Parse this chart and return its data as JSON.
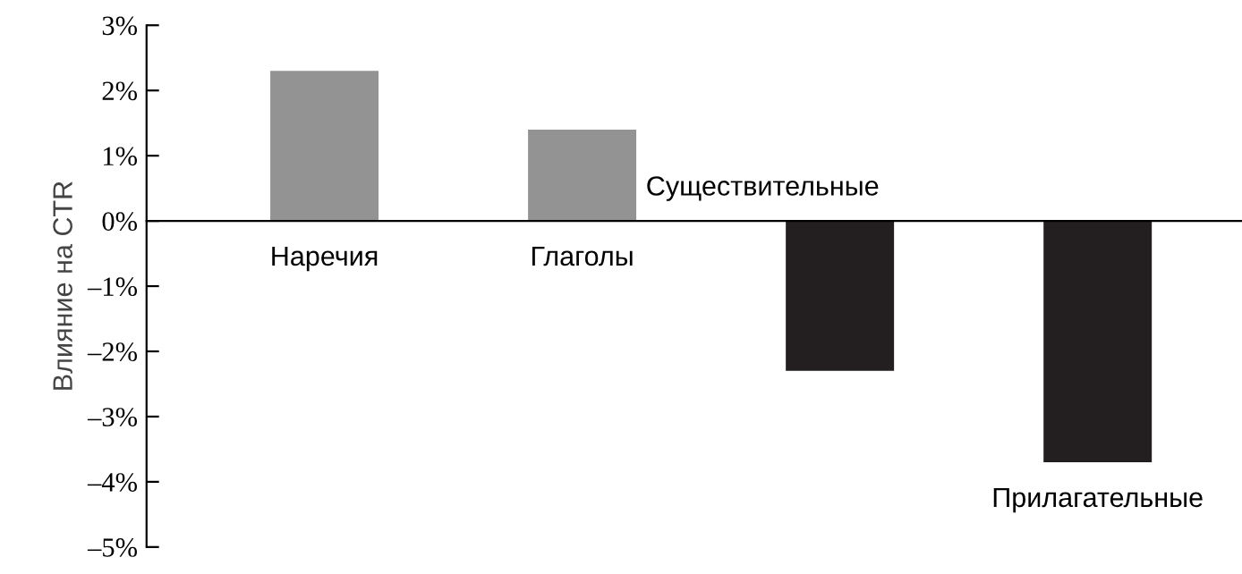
{
  "chart_data": {
    "type": "bar",
    "ylabel": "Влияние на CTR",
    "categories": [
      "Наречия",
      "Глаголы",
      "Существительные",
      "Прилагательные"
    ],
    "values": [
      2.3,
      1.4,
      -2.3,
      -3.7
    ],
    "colors": [
      "#939393",
      "#939393",
      "#231f20",
      "#231f20"
    ],
    "ylim": [
      -5,
      3
    ],
    "yticks": [
      {
        "value": -5,
        "label": "–5%"
      },
      {
        "value": -4,
        "label": "–4%"
      },
      {
        "value": -3,
        "label": "–3%"
      },
      {
        "value": -2,
        "label": "–2%"
      },
      {
        "value": -1,
        "label": "–1%"
      },
      {
        "value": 0,
        "label": "0%"
      },
      {
        "value": 1,
        "label": "1%"
      },
      {
        "value": 2,
        "label": "2%"
      },
      {
        "value": 3,
        "label": "3%"
      }
    ],
    "grid": false,
    "legend": false
  }
}
